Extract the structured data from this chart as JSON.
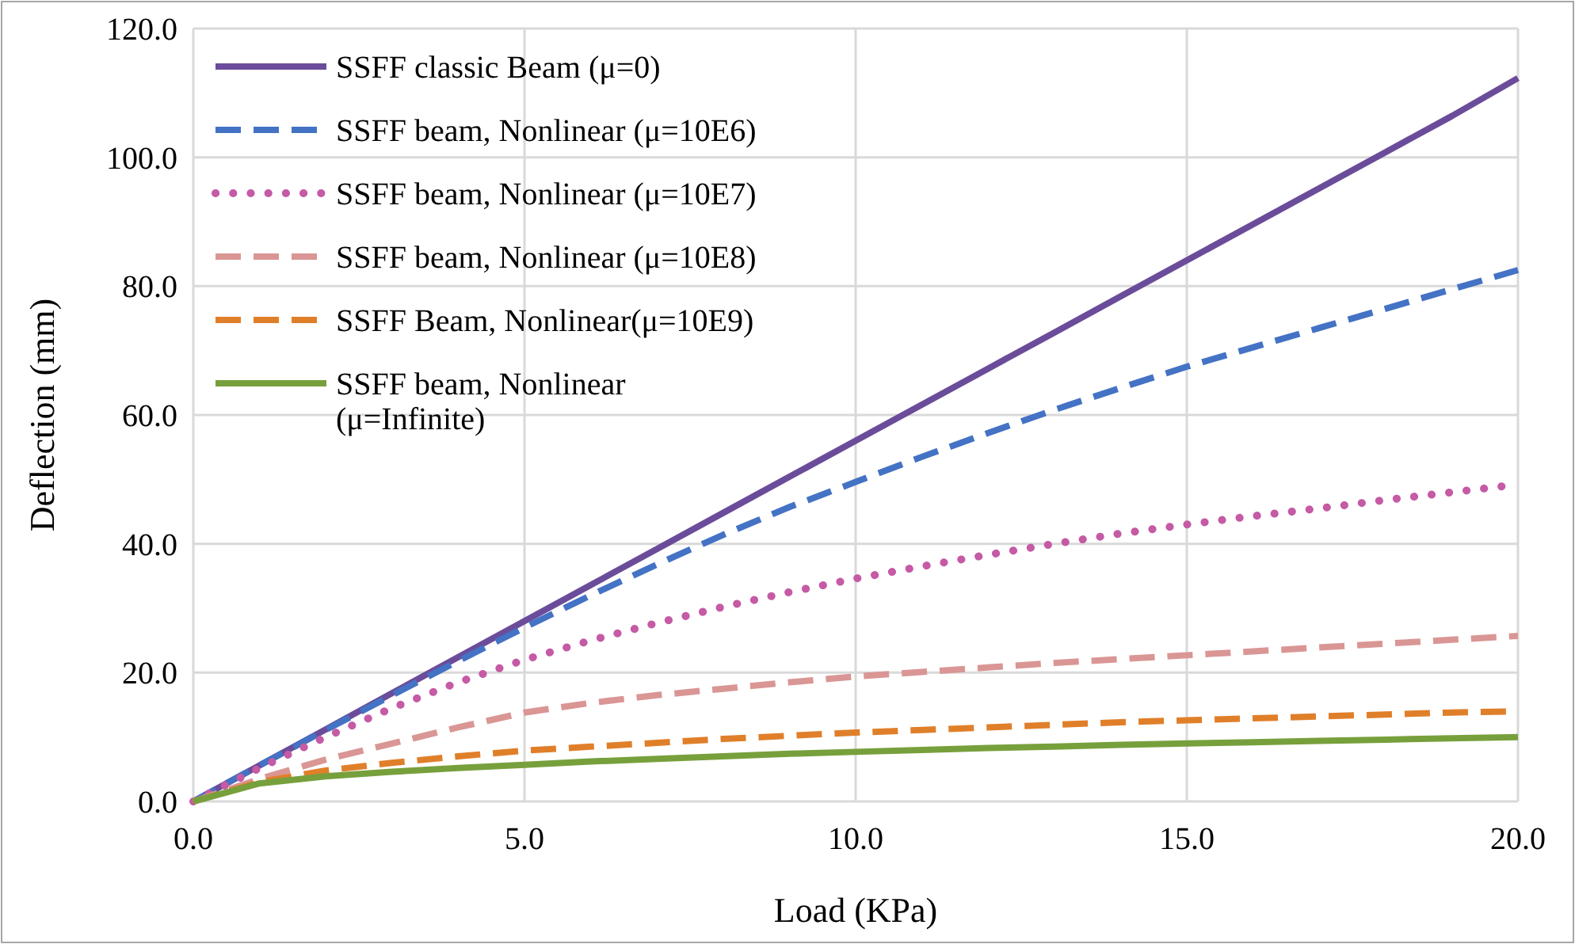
{
  "chart_data": {
    "type": "line",
    "xlabel": "Load (KPa)",
    "ylabel": "Deflection (mm)",
    "x": [
      0,
      1,
      2,
      3,
      4,
      5,
      6,
      7,
      8,
      9,
      10,
      11,
      12,
      13,
      14,
      15,
      16,
      17,
      18,
      19,
      20
    ],
    "xlim": [
      0,
      20
    ],
    "xticks": [
      {
        "value": 0,
        "label": "0.0"
      },
      {
        "value": 5,
        "label": "5.0"
      },
      {
        "value": 10,
        "label": "10.0"
      },
      {
        "value": 15,
        "label": "15.0"
      },
      {
        "value": 20,
        "label": "20.0"
      }
    ],
    "ylim": [
      0,
      120
    ],
    "yticks": [
      {
        "value": 0,
        "label": "0.0"
      },
      {
        "value": 20,
        "label": "20.0"
      },
      {
        "value": 40,
        "label": "40.0"
      },
      {
        "value": 60,
        "label": "60.0"
      },
      {
        "value": 80,
        "label": "80.0"
      },
      {
        "value": 100,
        "label": "100.0"
      },
      {
        "value": 120,
        "label": "120.0"
      }
    ],
    "grid": true,
    "legend": "top left",
    "series": [
      {
        "name": "SSFF classic Beam (μ=0)",
        "color": "#6b4c9a",
        "line_style": "solid",
        "values": [
          0,
          5.6,
          11.2,
          16.8,
          22.4,
          28,
          33.6,
          39.2,
          44.8,
          50.4,
          56,
          61.6,
          67.2,
          72.8,
          78.4,
          84,
          89.6,
          95.2,
          100.8,
          106.4,
          112.3
        ]
      },
      {
        "name": "SSFF beam, Nonlinear (μ=10E6)",
        "color": "#4472c4",
        "line_style": "dashed",
        "values": [
          0,
          5.6,
          11.1,
          16.5,
          21.8,
          27,
          32,
          36.8,
          41.4,
          45.7,
          49.6,
          53.5,
          57.2,
          60.8,
          64.2,
          67.5,
          70.5,
          73.5,
          76.5,
          79.5,
          82.5
        ]
      },
      {
        "name": "SSFF beam, Nonlinear (μ=10E7)",
        "color": "#c55aa5",
        "line_style": "dotted",
        "values": [
          0,
          5.2,
          10,
          14.5,
          18.5,
          22,
          25,
          27.7,
          30.2,
          32.5,
          34.6,
          36.5,
          38.3,
          40,
          41.6,
          43,
          44.3,
          45.5,
          46.8,
          48,
          49.2
        ]
      },
      {
        "name": "SSFF beam, Nonlinear (μ=10E8)",
        "color": "#d99694",
        "line_style": "dashed",
        "values": [
          0,
          3.5,
          6.5,
          9,
          11.5,
          13.8,
          15.3,
          16.5,
          17.5,
          18.5,
          19.4,
          20.1,
          20.8,
          21.5,
          22.1,
          22.7,
          23.3,
          23.9,
          24.5,
          25.1,
          25.7
        ]
      },
      {
        "name": "SSFF Beam, Nonlinear(μ=10E9)",
        "color": "#e07f2a",
        "line_style": "dashed",
        "values": [
          0,
          3,
          4.8,
          6,
          7,
          7.9,
          8.5,
          9.1,
          9.7,
          10.2,
          10.7,
          11.1,
          11.5,
          11.9,
          12.3,
          12.6,
          12.9,
          13.2,
          13.5,
          13.8,
          14
        ]
      },
      {
        "name": "SSFF beam, Nonlinear (μ=Infinite)",
        "color": "#77a03c",
        "line_style": "solid",
        "values": [
          0,
          2.8,
          3.9,
          4.6,
          5.2,
          5.7,
          6.2,
          6.6,
          7,
          7.4,
          7.7,
          8,
          8.3,
          8.5,
          8.8,
          9,
          9.2,
          9.4,
          9.6,
          9.8,
          10
        ]
      }
    ]
  }
}
